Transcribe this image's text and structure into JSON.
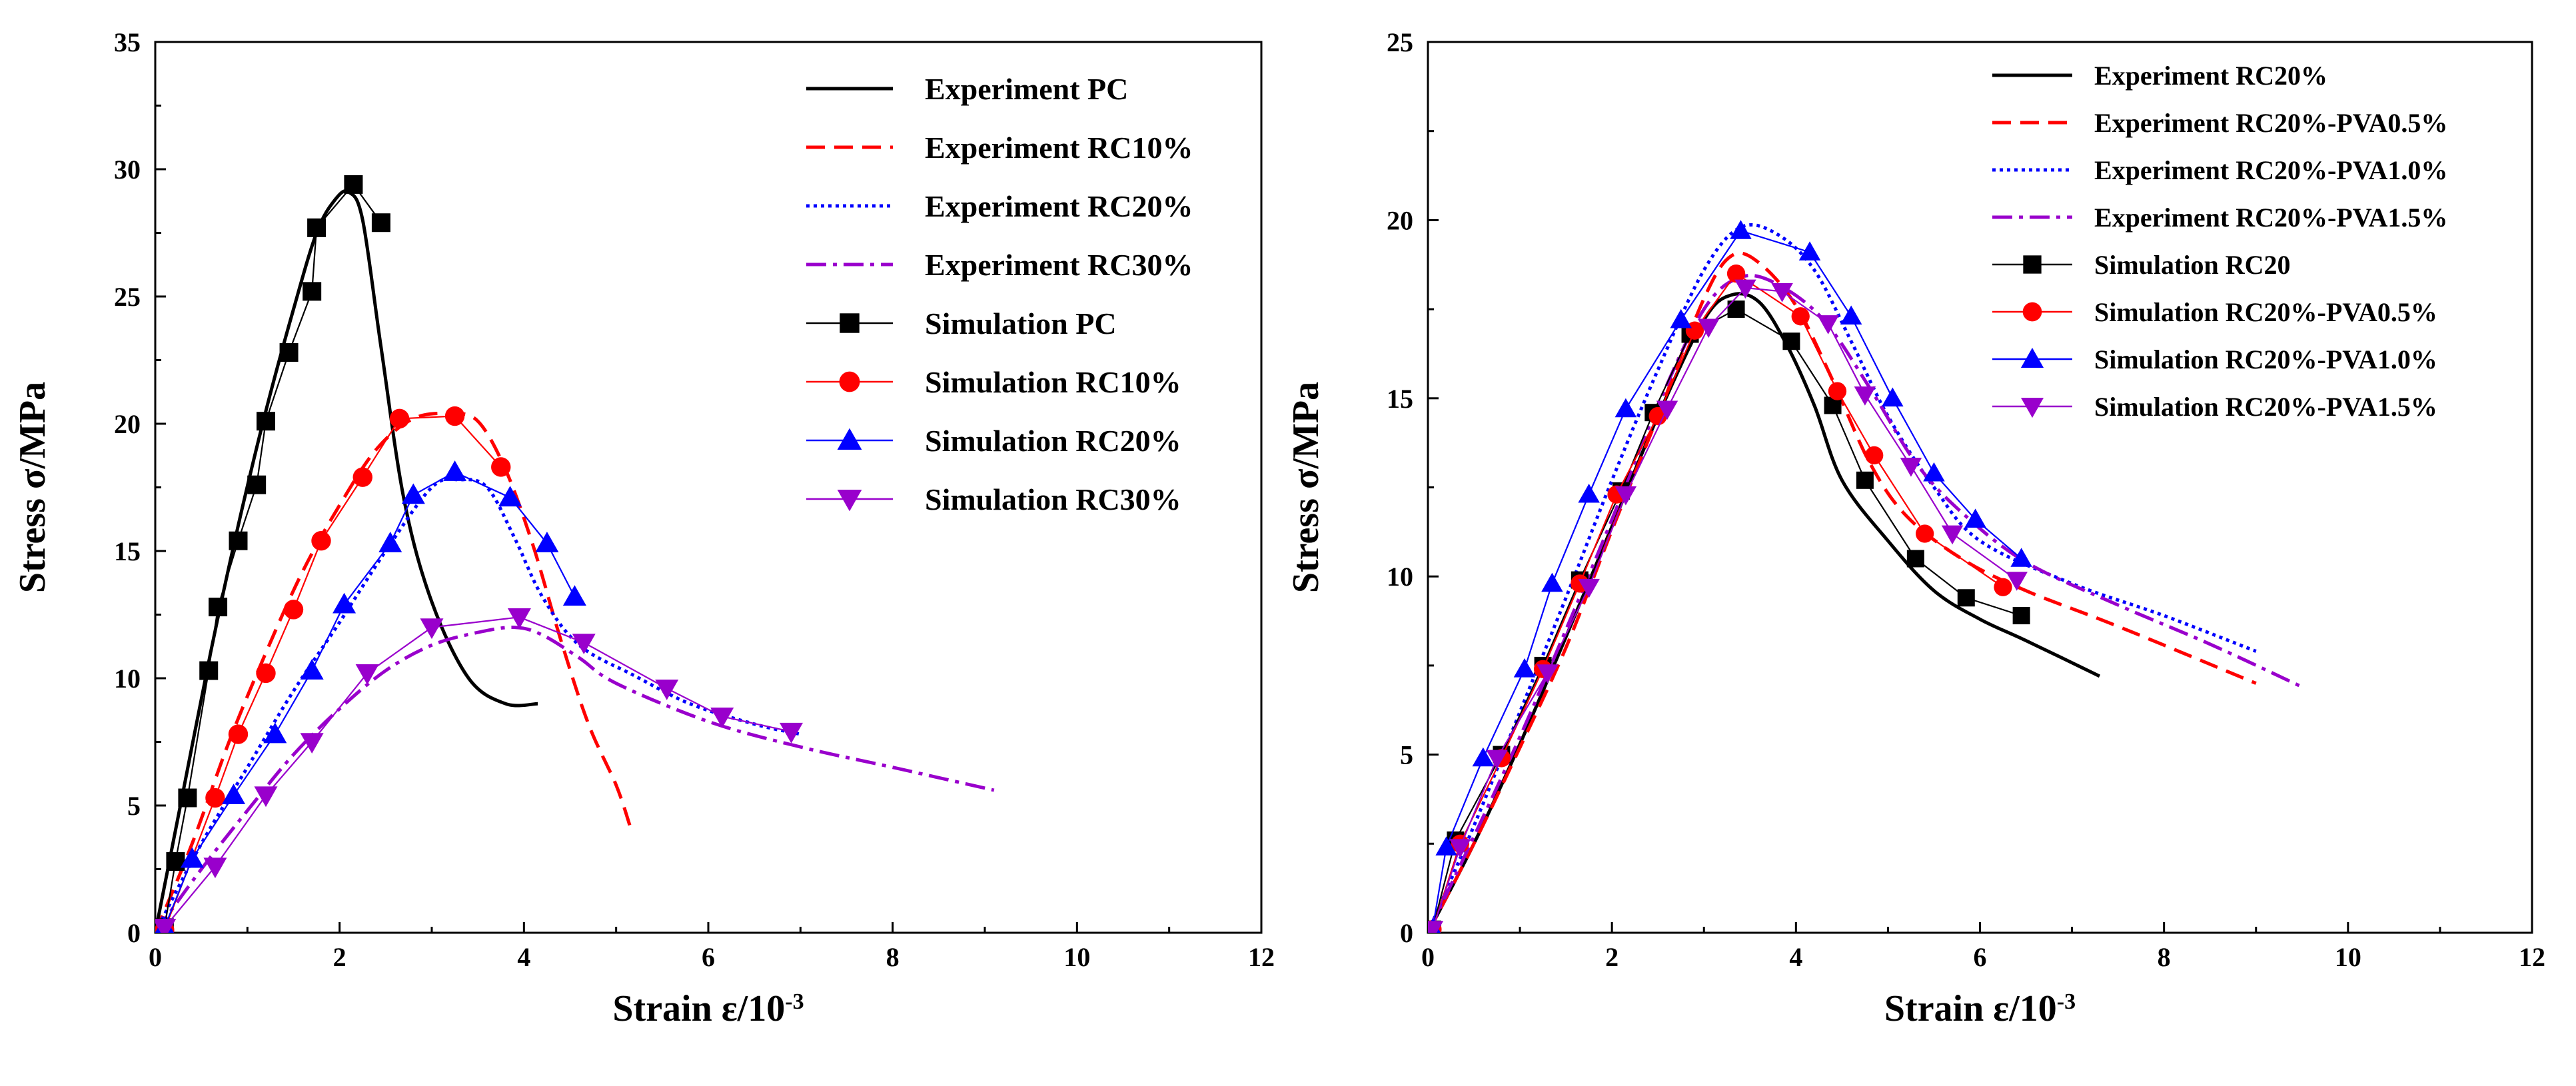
{
  "chart_data": [
    {
      "type": "line",
      "xlabel": "Strain ε/10",
      "xlabel_sup": "-3",
      "ylabel": "Stress σ/MPa",
      "xlim": [
        0,
        12
      ],
      "ylim": [
        0,
        35
      ],
      "xticks": [
        "0",
        "2",
        "4",
        "6",
        "8",
        "10",
        "12"
      ],
      "yticks": [
        "0",
        "5",
        "10",
        "15",
        "20",
        "25",
        "30",
        "35"
      ],
      "legend_position": "top-right",
      "series": [
        {
          "name": "Experiment PC",
          "color": "#000000",
          "style": "solid",
          "x": [
            0,
            0.3,
            0.6,
            0.9,
            1.2,
            1.5,
            1.75,
            1.95,
            2.1,
            2.25,
            2.45,
            2.7,
            3.0,
            3.4,
            3.8,
            4.15
          ],
          "y": [
            0,
            5.5,
            11,
            16,
            20.5,
            24.5,
            27.5,
            28.8,
            29.1,
            28,
            23,
            17,
            13,
            10,
            9,
            9
          ]
        },
        {
          "name": "Experiment RC10%",
          "color": "#ff0000",
          "style": "dashed",
          "x": [
            0,
            0.4,
            0.8,
            1.2,
            1.6,
            2.0,
            2.4,
            2.8,
            3.2,
            3.5,
            3.8,
            4.1,
            4.4,
            4.7,
            5.0,
            5.15
          ],
          "y": [
            0,
            3.5,
            7.5,
            11,
            14.2,
            16.8,
            19,
            20.2,
            20.4,
            20.1,
            18.2,
            15.2,
            11.5,
            8.2,
            5.8,
            4.2
          ]
        },
        {
          "name": "Experiment RC20%",
          "color": "#0000ff",
          "style": "dotted",
          "x": [
            0,
            0.5,
            1.0,
            1.5,
            2.0,
            2.5,
            3.0,
            3.3,
            3.6,
            3.9,
            4.2,
            4.6,
            5.2,
            5.8,
            6.5,
            7.0
          ],
          "y": [
            0,
            3.5,
            6.5,
            9.5,
            12.2,
            15,
            17.5,
            17.8,
            17.5,
            15.5,
            13.2,
            11.3,
            10.1,
            9.0,
            8.2,
            7.8
          ]
        },
        {
          "name": "Experiment RC30%",
          "color": "#9900cc",
          "style": "dashdot",
          "x": [
            0,
            0.5,
            1.0,
            1.5,
            2.0,
            2.5,
            3.0,
            3.5,
            3.9,
            4.2,
            4.6,
            5.0,
            6.0,
            7.0,
            8.0,
            9.1
          ],
          "y": [
            0,
            2.5,
            4.8,
            7,
            8.8,
            10.3,
            11.3,
            11.8,
            12,
            11.7,
            10.8,
            9.8,
            8.3,
            7.3,
            6.5,
            5.6
          ]
        },
        {
          "name": "Simulation PC",
          "color": "#000000",
          "style": "marker-line",
          "marker": "square",
          "x": [
            0.1,
            0.22,
            0.35,
            0.58,
            0.68,
            0.9,
            1.1,
            1.2,
            1.45,
            1.7,
            1.75,
            2.15,
            2.45
          ],
          "y": [
            0.2,
            2.8,
            5.3,
            10.3,
            12.8,
            15.4,
            17.6,
            20.1,
            22.8,
            25.2,
            27.7,
            29.4,
            27.9
          ]
        },
        {
          "name": "Simulation RC10%",
          "color": "#ff0000",
          "style": "marker-line",
          "marker": "circle",
          "x": [
            0.1,
            0.65,
            0.9,
            1.2,
            1.5,
            1.8,
            2.25,
            2.65,
            3.25,
            3.75
          ],
          "y": [
            0.1,
            5.3,
            7.8,
            10.2,
            12.7,
            15.4,
            17.9,
            20.2,
            20.3,
            18.3
          ]
        },
        {
          "name": "Simulation RC20%",
          "color": "#0000ff",
          "style": "marker-line",
          "marker": "triangle-up",
          "x": [
            0.1,
            0.4,
            0.85,
            1.3,
            1.7,
            2.05,
            2.55,
            2.8,
            3.25,
            3.85,
            4.25,
            4.55
          ],
          "y": [
            0.2,
            2.9,
            5.4,
            7.8,
            10.3,
            12.9,
            15.3,
            17.2,
            18.1,
            17.1,
            15.3,
            13.2
          ]
        },
        {
          "name": "Simulation RC30%",
          "color": "#9900cc",
          "style": "marker-line",
          "marker": "triangle-down",
          "x": [
            0.1,
            0.65,
            1.2,
            1.7,
            2.3,
            3.0,
            3.95,
            4.65,
            5.55,
            6.15,
            6.9
          ],
          "y": [
            0.2,
            2.6,
            5.4,
            7.5,
            10.2,
            12.0,
            12.4,
            11.4,
            9.6,
            8.5,
            7.9
          ]
        }
      ]
    },
    {
      "type": "line",
      "xlabel": "Strain ε/10",
      "xlabel_sup": "-3",
      "ylabel": "Stress σ/MPa",
      "xlim": [
        0,
        12
      ],
      "ylim": [
        0,
        25
      ],
      "xticks": [
        "0",
        "2",
        "4",
        "6",
        "8",
        "10",
        "12"
      ],
      "yticks": [
        "0",
        "5",
        "10",
        "15",
        "20",
        "25"
      ],
      "legend_position": "top-right",
      "series": [
        {
          "name": "Experiment RC20%",
          "color": "#000000",
          "style": "solid",
          "x": [
            0,
            0.5,
            1.0,
            1.5,
            2.0,
            2.5,
            3.0,
            3.3,
            3.6,
            3.9,
            4.2,
            4.5,
            5.0,
            5.5,
            6.0,
            6.5,
            7.3
          ],
          "y": [
            0,
            2.5,
            5.3,
            8.3,
            11.4,
            14.5,
            17.2,
            17.9,
            17.7,
            16.5,
            14.8,
            12.7,
            11.0,
            9.6,
            8.8,
            8.2,
            7.2
          ]
        },
        {
          "name": "Experiment RC20%-PVA0.5%",
          "color": "#ff0000",
          "style": "dashed",
          "x": [
            0,
            0.5,
            1.0,
            1.5,
            2.0,
            2.5,
            3.0,
            3.3,
            3.6,
            4.0,
            4.4,
            4.8,
            5.2,
            5.8,
            6.5,
            7.5,
            9.0
          ],
          "y": [
            0,
            2.5,
            5.2,
            8.0,
            11.3,
            14.5,
            17.8,
            19.0,
            18.8,
            17.6,
            15.5,
            13.2,
            11.7,
            10.5,
            9.6,
            8.6,
            7.0
          ]
        },
        {
          "name": "Experiment RC20%-PVA1.0%",
          "color": "#0000ff",
          "style": "dotted",
          "x": [
            0,
            0.5,
            1.0,
            1.5,
            2.0,
            2.5,
            3.0,
            3.4,
            3.8,
            4.2,
            4.6,
            5.0,
            5.5,
            6.0,
            7.0,
            8.0,
            9.0
          ],
          "y": [
            0,
            3.0,
            6.2,
            9.4,
            12.7,
            15.8,
            18.6,
            19.8,
            19.6,
            18.6,
            16.6,
            14.5,
            12.5,
            11.0,
            9.8,
            8.9,
            7.9
          ]
        },
        {
          "name": "Experiment RC20%-PVA1.5%",
          "color": "#9900cc",
          "style": "dashdot",
          "x": [
            0,
            0.5,
            1.0,
            1.5,
            2.0,
            2.5,
            3.0,
            3.4,
            3.8,
            4.3,
            4.8,
            5.3,
            5.8,
            6.5,
            7.5,
            8.5,
            9.5
          ],
          "y": [
            0,
            2.7,
            5.5,
            8.5,
            11.6,
            14.8,
            17.5,
            18.4,
            18.2,
            17.2,
            15.3,
            13.2,
            11.8,
            10.4,
            9.2,
            8.1,
            6.9
          ]
        },
        {
          "name": "Simulation RC20",
          "color": "#000000",
          "style": "marker-line",
          "marker": "square",
          "x": [
            0.05,
            0.3,
            0.8,
            1.25,
            1.65,
            2.1,
            2.45,
            2.85,
            3.35,
            3.95,
            4.4,
            4.75,
            5.3,
            5.85,
            6.45
          ],
          "y": [
            0.1,
            2.6,
            5.0,
            7.5,
            9.9,
            12.4,
            14.6,
            16.8,
            17.5,
            16.6,
            14.8,
            12.7,
            10.5,
            9.4,
            8.9
          ]
        },
        {
          "name": "Simulation RC20%-PVA0.5%",
          "color": "#ff0000",
          "style": "marker-line",
          "marker": "circle",
          "x": [
            0.05,
            0.35,
            0.8,
            1.25,
            1.65,
            2.05,
            2.5,
            2.9,
            3.35,
            4.05,
            4.45,
            4.85,
            5.4,
            6.25
          ],
          "y": [
            0.1,
            2.5,
            4.9,
            7.4,
            9.8,
            12.3,
            14.5,
            16.9,
            18.5,
            17.3,
            15.2,
            13.4,
            11.2,
            9.7
          ]
        },
        {
          "name": "Simulation RC20%-PVA1.0%",
          "color": "#0000ff",
          "style": "marker-line",
          "marker": "triangle-up",
          "x": [
            0.05,
            0.2,
            0.6,
            1.05,
            1.35,
            1.75,
            2.15,
            2.75,
            3.4,
            4.15,
            4.6,
            5.05,
            5.5,
            5.95,
            6.45
          ],
          "y": [
            0.1,
            2.4,
            4.9,
            7.4,
            9.8,
            12.3,
            14.7,
            17.2,
            19.7,
            19.1,
            17.3,
            15.0,
            12.9,
            11.6,
            10.5
          ]
        },
        {
          "name": "Simulation RC20%-PVA1.5%",
          "color": "#9900cc",
          "style": "marker-line",
          "marker": "triangle-down",
          "x": [
            0.05,
            0.35,
            0.75,
            1.3,
            1.75,
            2.15,
            2.6,
            3.05,
            3.45,
            3.85,
            4.35,
            4.75,
            5.25,
            5.7,
            6.4
          ],
          "y": [
            0.1,
            2.4,
            4.9,
            7.3,
            9.7,
            12.3,
            14.7,
            17.0,
            18.1,
            18.0,
            17.1,
            15.1,
            13.1,
            11.2,
            9.9
          ]
        }
      ]
    }
  ]
}
